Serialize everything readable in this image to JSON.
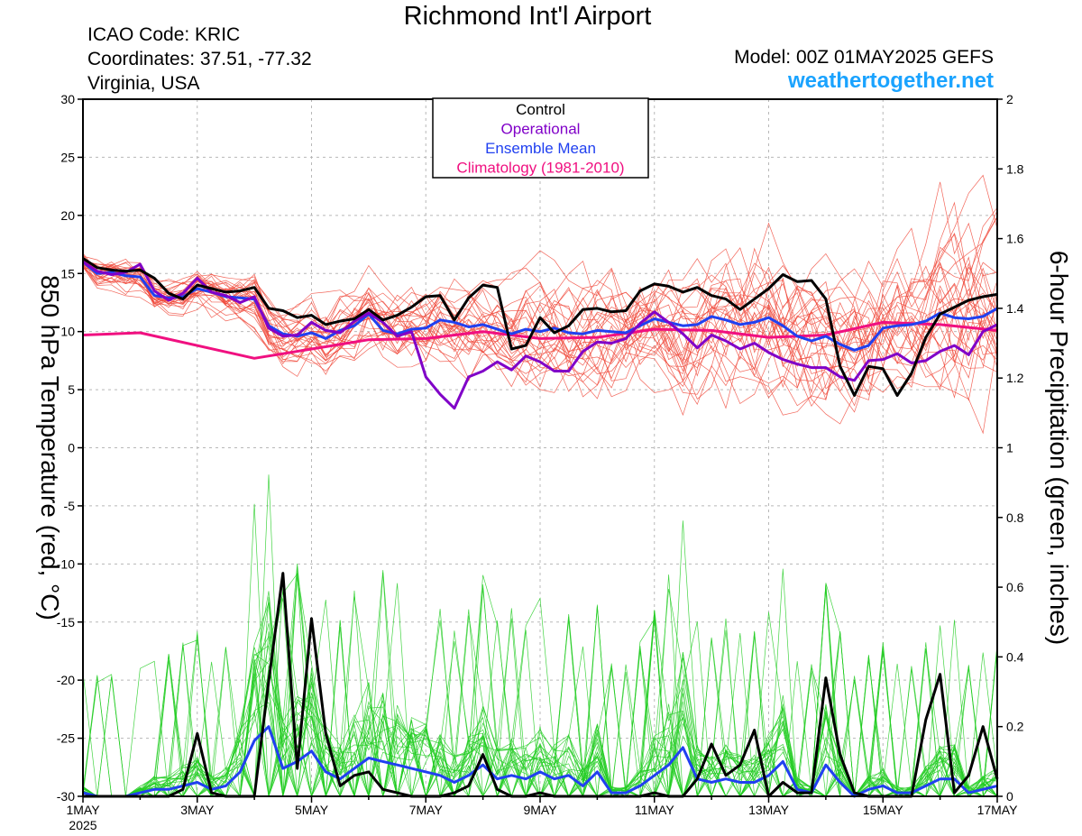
{
  "header": {
    "title": "Richmond Int'l Airport",
    "icao": "ICAO Code: KRIC",
    "coordinates": "Coordinates: 37.51, -77.32",
    "region": "Virginia, USA",
    "model": "Model: 00Z 01MAY2025 GEFS",
    "site": "weathertogether.net"
  },
  "colors": {
    "control": "#000000",
    "operational": "#8000c8",
    "ensemble_mean": "#2040f0",
    "climatology": "#f01080",
    "members_temp": "#f04a3c",
    "members_precip": "#22cc22"
  },
  "chart_data": {
    "type": "line",
    "title": "Richmond Int'l Airport",
    "ylabel": "850 hPa Temperature (red, °C)",
    "y2label": "6-hour Precipitation (green, inches)",
    "ylim": [
      -30,
      30
    ],
    "y2lim": [
      0,
      2
    ],
    "yticks": [
      30,
      25,
      20,
      15,
      10,
      5,
      0,
      -5,
      -10,
      -15,
      -20,
      -25,
      -30
    ],
    "y2ticks": [
      "2",
      "1.8",
      "1.6",
      "1.4",
      "1.2",
      "1",
      "0.8",
      "0.6",
      "0.4",
      "0.2",
      "0"
    ],
    "xlim": [
      "2025-05-01",
      "2025-05-17"
    ],
    "xticks": [
      {
        "d": 1,
        "label": "1MAY",
        "sub": "2025"
      },
      {
        "d": 3,
        "label": "3MAY"
      },
      {
        "d": 5,
        "label": "5MAY"
      },
      {
        "d": 7,
        "label": "7MAY"
      },
      {
        "d": 9,
        "label": "9MAY"
      },
      {
        "d": 11,
        "label": "11MAY"
      },
      {
        "d": 13,
        "label": "13MAY"
      },
      {
        "d": 15,
        "label": "15MAY"
      },
      {
        "d": 17,
        "label": "17MAY"
      }
    ],
    "grid": true,
    "legend": {
      "placement": "top-center",
      "entries": [
        "Control",
        "Operational",
        "Ensemble Mean",
        "Climatology (1981-2010)"
      ]
    },
    "series": [
      {
        "name": "Control",
        "axis": "temperature",
        "x": [
          1.0,
          1.25,
          1.5,
          1.75,
          2.0,
          2.25,
          2.5,
          2.75,
          3.0,
          3.25,
          3.5,
          3.75,
          4.0,
          4.25,
          4.5,
          4.75,
          5.0,
          5.25,
          5.5,
          5.75,
          6.0,
          6.25,
          6.5,
          6.75,
          7.0,
          7.25,
          7.5,
          7.75,
          8.0,
          8.25,
          8.5,
          8.75,
          9.0,
          9.25,
          9.5,
          9.75,
          10.0,
          10.25,
          10.5,
          10.75,
          11.0,
          11.25,
          11.5,
          11.75,
          12.0,
          12.25,
          12.5,
          12.75,
          13.0,
          13.25,
          13.5,
          13.75,
          14.0,
          14.25,
          14.5,
          14.75,
          15.0,
          15.25,
          15.5,
          15.75,
          16.0,
          16.25,
          16.5,
          16.75,
          17.0
        ],
        "values": [
          16.3,
          15.5,
          15.3,
          15.2,
          15.3,
          14.6,
          13.3,
          12.8,
          14.0,
          13.7,
          13.4,
          13.5,
          13.8,
          12.0,
          11.8,
          11.2,
          11.4,
          10.6,
          10.9,
          11.1,
          11.9,
          11.0,
          11.4,
          12.1,
          13.0,
          13.1,
          11.0,
          12.9,
          14.0,
          13.8,
          8.5,
          8.8,
          11.2,
          9.9,
          10.5,
          11.9,
          12.0,
          11.7,
          11.8,
          13.5,
          14.1,
          13.9,
          13.4,
          13.8,
          13.1,
          12.8,
          11.9,
          12.8,
          13.7,
          14.9,
          14.3,
          14.4,
          12.8,
          7.0,
          4.5,
          7.0,
          6.8,
          4.5,
          6.4,
          9.5,
          11.5,
          12.1,
          12.7,
          13.0,
          13.2
        ]
      },
      {
        "name": "Operational",
        "axis": "temperature",
        "x": [
          1.0,
          1.25,
          1.5,
          1.75,
          2.0,
          2.25,
          2.5,
          2.75,
          3.0,
          3.25,
          3.5,
          3.75,
          4.0,
          4.25,
          4.5,
          4.75,
          5.0,
          5.25,
          5.5,
          5.75,
          6.0,
          6.25,
          6.5,
          6.75,
          7.0,
          7.25,
          7.5,
          7.75,
          8.0,
          8.25,
          8.5,
          8.75,
          9.0,
          9.25,
          9.5,
          9.75,
          10.0,
          10.25,
          10.5,
          10.75,
          11.0,
          11.25,
          11.5,
          11.75,
          12.0,
          12.25,
          12.5,
          12.75,
          13.0,
          13.25,
          13.5,
          13.75,
          14.0,
          14.25,
          14.5,
          14.75,
          15.0,
          15.25,
          15.5,
          15.75,
          16.0,
          16.25,
          16.5,
          16.75,
          17.0
        ],
        "values": [
          16.0,
          15.2,
          14.9,
          15.1,
          15.8,
          13.5,
          12.7,
          13.3,
          14.6,
          13.4,
          13.1,
          12.5,
          13.0,
          10.3,
          9.6,
          9.7,
          10.8,
          10.1,
          9.9,
          10.9,
          11.6,
          10.8,
          9.6,
          10.0,
          6.1,
          4.6,
          3.4,
          6.1,
          6.6,
          7.4,
          6.7,
          7.9,
          7.4,
          6.6,
          6.6,
          8.3,
          9.1,
          9.0,
          9.4,
          10.7,
          11.7,
          10.8,
          9.8,
          8.6,
          9.7,
          9.2,
          8.5,
          9.0,
          8.2,
          7.6,
          7.2,
          6.9,
          6.9,
          6.1,
          5.8,
          7.5,
          7.6,
          8.1,
          7.3,
          7.5,
          8.3,
          8.8,
          8.0,
          10.0,
          10.6
        ]
      },
      {
        "name": "Ensemble Mean",
        "axis": "temperature",
        "x": [
          1.0,
          1.25,
          1.5,
          1.75,
          2.0,
          2.25,
          2.5,
          2.75,
          3.0,
          3.25,
          3.5,
          3.75,
          4.0,
          4.25,
          4.5,
          4.75,
          5.0,
          5.25,
          5.5,
          5.75,
          6.0,
          6.25,
          6.5,
          6.75,
          7.0,
          7.25,
          7.5,
          7.75,
          8.0,
          8.25,
          8.5,
          8.75,
          9.0,
          9.25,
          9.5,
          9.75,
          10.0,
          10.25,
          10.5,
          10.75,
          11.0,
          11.25,
          11.5,
          11.75,
          12.0,
          12.25,
          12.5,
          12.75,
          13.0,
          13.25,
          13.5,
          13.75,
          14.0,
          14.25,
          14.5,
          14.75,
          15.0,
          15.25,
          15.5,
          15.75,
          16.0,
          16.25,
          16.5,
          16.75,
          17.0
        ],
        "values": [
          16.0,
          15.0,
          15.1,
          14.8,
          14.7,
          13.1,
          12.9,
          13.0,
          13.7,
          13.4,
          13.0,
          12.9,
          12.8,
          10.5,
          9.8,
          9.6,
          9.9,
          9.4,
          10.1,
          10.5,
          11.5,
          10.1,
          9.8,
          10.2,
          10.3,
          11.0,
          10.8,
          10.4,
          10.6,
          10.2,
          9.8,
          10.2,
          10.0,
          10.3,
          9.9,
          9.8,
          10.1,
          10.0,
          9.9,
          10.5,
          11.1,
          10.8,
          10.5,
          10.6,
          11.3,
          11.0,
          10.6,
          10.8,
          11.2,
          10.5,
          9.6,
          9.2,
          9.6,
          8.9,
          8.4,
          8.8,
          10.3,
          10.5,
          10.6,
          10.9,
          11.6,
          11.2,
          11.1,
          11.3,
          12.0
        ]
      },
      {
        "name": "Climatology (1981-2010)",
        "axis": "temperature",
        "x": [
          1.0,
          2.0,
          4.0,
          6.0,
          7.0,
          8.0,
          9.0,
          10.0,
          11.0,
          12.0,
          13.0,
          14.0,
          15.0,
          16.0,
          17.0
        ],
        "values": [
          9.7,
          9.9,
          7.7,
          9.3,
          9.4,
          10.0,
          9.4,
          9.5,
          10.2,
          10.1,
          9.5,
          9.7,
          10.8,
          10.6,
          10.1
        ]
      },
      {
        "name": "Control",
        "axis": "precipitation",
        "x": [
          1.0,
          1.25,
          1.5,
          1.75,
          2.0,
          2.25,
          2.5,
          2.75,
          3.0,
          3.25,
          3.5,
          3.75,
          4.0,
          4.25,
          4.5,
          4.75,
          5.0,
          5.25,
          5.5,
          5.75,
          6.0,
          6.25,
          6.5,
          6.75,
          7.0,
          7.25,
          7.5,
          7.75,
          8.0,
          8.25,
          8.5,
          8.75,
          9.0,
          9.25,
          9.5,
          9.75,
          10.0,
          10.25,
          10.5,
          10.75,
          11.0,
          11.25,
          11.5,
          11.75,
          12.0,
          12.25,
          12.5,
          12.75,
          13.0,
          13.25,
          13.5,
          13.75,
          14.0,
          14.25,
          14.5,
          14.75,
          15.0,
          15.25,
          15.5,
          15.75,
          16.0,
          16.25,
          16.5,
          16.75,
          17.0
        ],
        "values": [
          0,
          0,
          0,
          0,
          0,
          0,
          0,
          0.02,
          0.18,
          0.01,
          0,
          0,
          0,
          0.33,
          0.64,
          0.08,
          0.51,
          0.18,
          0.03,
          0.06,
          0.07,
          0.02,
          0.01,
          0,
          0,
          0,
          0.01,
          0.03,
          0.12,
          0.02,
          0,
          0,
          0.01,
          0,
          0,
          0,
          0,
          0,
          0,
          0,
          0.01,
          0,
          0,
          0.05,
          0.15,
          0.06,
          0.09,
          0.19,
          0,
          0.04,
          0.01,
          0.01,
          0.34,
          0.12,
          0.01,
          0,
          0,
          0,
          0,
          0.22,
          0.35,
          0.01,
          0.06,
          0.2,
          0.05
        ]
      },
      {
        "name": "Ensemble Mean",
        "axis": "precipitation",
        "x": [
          1.0,
          1.25,
          1.5,
          1.75,
          2.0,
          2.25,
          2.5,
          2.75,
          3.0,
          3.25,
          3.5,
          3.75,
          4.0,
          4.25,
          4.5,
          4.75,
          5.0,
          5.25,
          5.5,
          5.75,
          6.0,
          6.25,
          6.5,
          6.75,
          7.0,
          7.25,
          7.5,
          7.75,
          8.0,
          8.25,
          8.5,
          8.75,
          9.0,
          9.25,
          9.5,
          9.75,
          10.0,
          10.25,
          10.5,
          10.75,
          11.0,
          11.25,
          11.5,
          11.75,
          12.0,
          12.25,
          12.5,
          12.75,
          13.0,
          13.25,
          13.5,
          13.75,
          14.0,
          14.25,
          14.5,
          14.75,
          15.0,
          15.25,
          15.5,
          15.75,
          16.0,
          16.25,
          16.5,
          16.75,
          17.0
        ],
        "values": [
          0.01,
          0,
          0,
          0,
          0.01,
          0.02,
          0.02,
          0.03,
          0.04,
          0.02,
          0.03,
          0.07,
          0.16,
          0.2,
          0.08,
          0.1,
          0.13,
          0.07,
          0.05,
          0.08,
          0.11,
          0.1,
          0.09,
          0.08,
          0.07,
          0.06,
          0.04,
          0.06,
          0.09,
          0.05,
          0.06,
          0.05,
          0.07,
          0.05,
          0.06,
          0.03,
          0.07,
          0.01,
          0.01,
          0.03,
          0.06,
          0.09,
          0.14,
          0.05,
          0.04,
          0.05,
          0.04,
          0.04,
          0.06,
          0.1,
          0.02,
          0.01,
          0.09,
          0.04,
          0,
          0.02,
          0.03,
          0.01,
          0.01,
          0.03,
          0.05,
          0.05,
          0.01,
          0.02,
          0.03
        ]
      }
    ]
  }
}
